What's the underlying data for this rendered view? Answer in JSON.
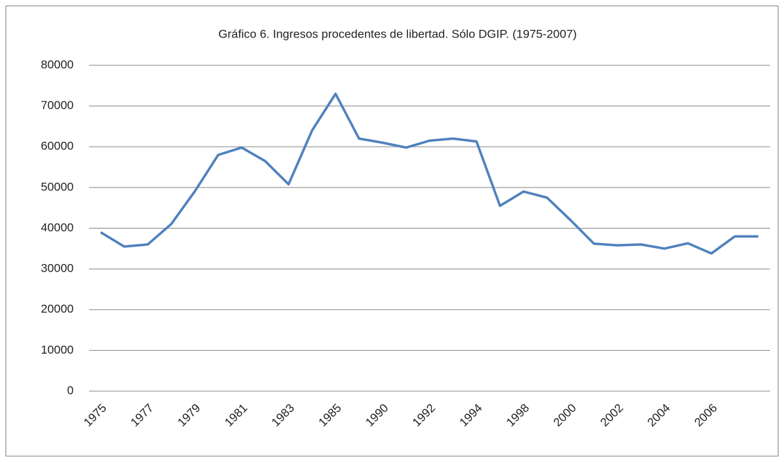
{
  "chart_data": {
    "type": "line",
    "title": "Gráfico 6. Ingresos procedentes de libertad. Sólo DGIP. (1975-2007)",
    "categories": [
      "1975",
      null,
      "1977",
      null,
      "1979",
      null,
      "1981",
      null,
      "1983",
      null,
      "1985",
      null,
      "1990",
      null,
      "1992",
      null,
      "1994",
      null,
      "1998",
      null,
      "2000",
      null,
      "2002",
      null,
      "2004",
      null,
      "2006",
      null,
      null
    ],
    "series": [
      {
        "name": null,
        "color": "#4f81bd",
        "values": [
          39000,
          35500,
          36000,
          41000,
          49000,
          58000,
          59800,
          56500,
          50800,
          64000,
          73000,
          62000,
          61000,
          59800,
          61500,
          62000,
          61300,
          45500,
          49000,
          47500,
          42000,
          36200,
          35800,
          36000,
          35000,
          36300,
          33800,
          38000,
          38000
        ]
      }
    ],
    "ylim": [
      0,
      80000
    ],
    "yticks": [
      0,
      10000,
      20000,
      30000,
      40000,
      50000,
      60000,
      70000,
      80000
    ],
    "grid": true
  }
}
